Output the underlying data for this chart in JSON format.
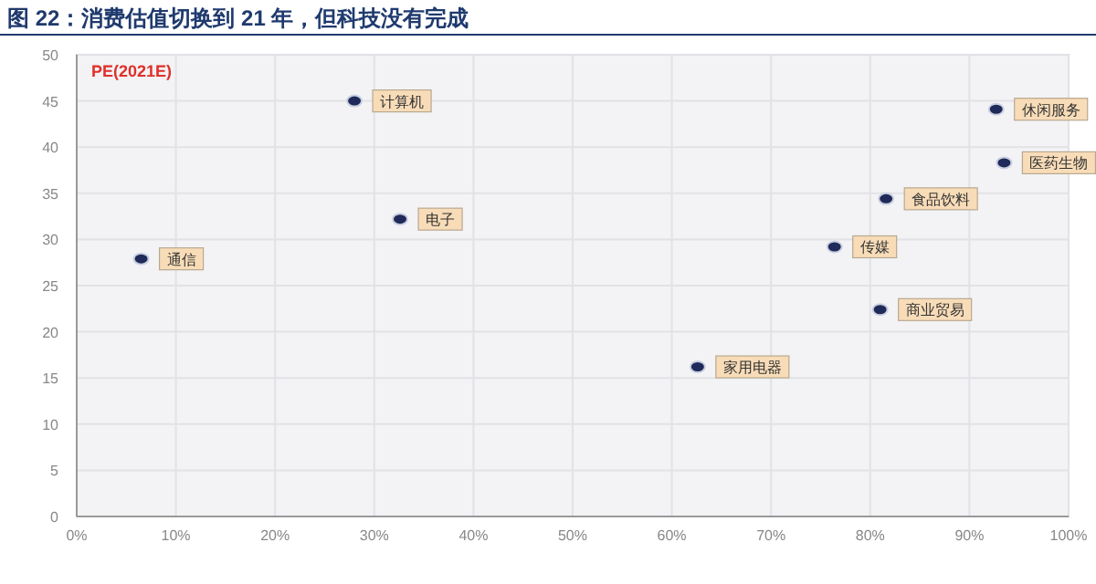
{
  "chart_data": {
    "type": "scatter",
    "title": "图 22：消费估值切换到 21 年，但科技没有完成",
    "ylabel": "PE(2021E)",
    "x": [
      6.5,
      28.0,
      32.6,
      62.6,
      76.4,
      81.0,
      81.6,
      92.7,
      93.5
    ],
    "series": [
      {
        "color": "#1f2a5a",
        "values": [
          27.9,
          45.0,
          32.2,
          16.2,
          29.2,
          22.4,
          34.4,
          44.1,
          38.3
        ]
      }
    ],
    "xlim": [
      0,
      100
    ],
    "xticks": [
      {
        "value": 0,
        "label": "0%"
      },
      {
        "value": 10,
        "label": "10%"
      },
      {
        "value": 20,
        "label": "20%"
      },
      {
        "value": 30,
        "label": "30%"
      },
      {
        "value": 40,
        "label": "40%"
      },
      {
        "value": 50,
        "label": "50%"
      },
      {
        "value": 60,
        "label": "60%"
      },
      {
        "value": 70,
        "label": "70%"
      },
      {
        "value": 80,
        "label": "80%"
      },
      {
        "value": 90,
        "label": "90%"
      },
      {
        "value": 100,
        "label": "100%"
      }
    ],
    "ylim": [
      0,
      50
    ],
    "yticks": [
      0,
      5,
      10,
      15,
      20,
      25,
      30,
      35,
      40,
      45,
      50
    ],
    "grid": true,
    "marker": "circle",
    "annotations": [
      {
        "text": "通信",
        "x": 6.5,
        "y": 27.9
      },
      {
        "text": "计算机",
        "x": 28.0,
        "y": 45.0
      },
      {
        "text": "电子",
        "x": 32.6,
        "y": 32.2
      },
      {
        "text": "家用电器",
        "x": 62.6,
        "y": 16.2
      },
      {
        "text": "传媒",
        "x": 76.4,
        "y": 29.2
      },
      {
        "text": "商业贸易",
        "x": 81.0,
        "y": 22.4
      },
      {
        "text": "食品饮料",
        "x": 81.6,
        "y": 34.4
      },
      {
        "text": "休闲服务",
        "x": 92.7,
        "y": 44.1
      },
      {
        "text": "医药生物",
        "x": 93.5,
        "y": 38.3
      }
    ]
  }
}
